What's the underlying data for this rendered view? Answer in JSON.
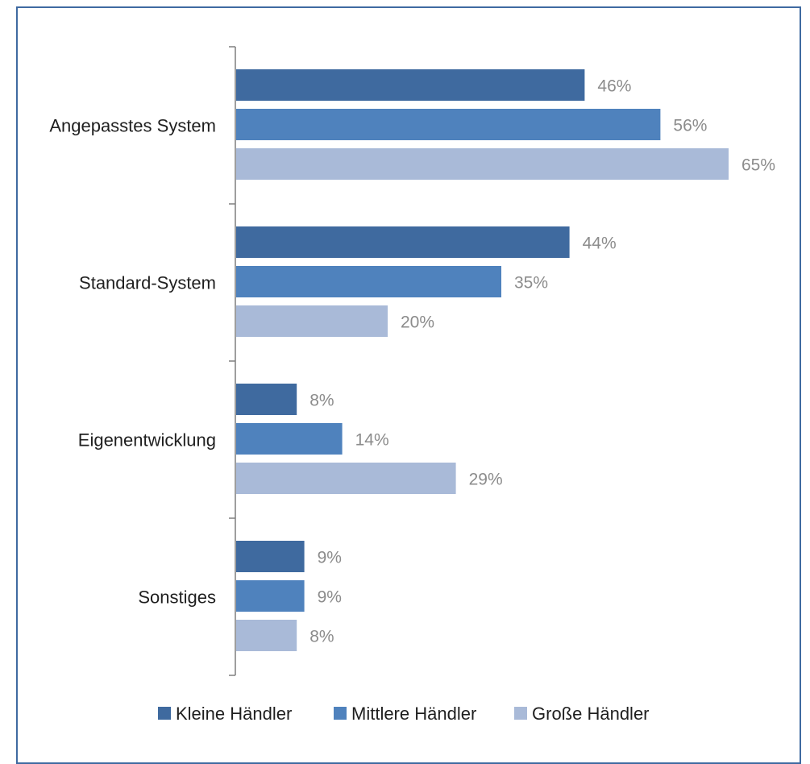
{
  "chart_data": {
    "type": "bar",
    "orientation": "horizontal",
    "categories": [
      "Angepasstes System",
      "Standard-System",
      "Eigenentwicklung",
      "Sonstiges"
    ],
    "series": [
      {
        "name": "Kleine Händler",
        "values": [
          46,
          44,
          8,
          9
        ],
        "color": "#3f6a9f"
      },
      {
        "name": "Mittlere Händler",
        "values": [
          56,
          35,
          14,
          9
        ],
        "color": "#4f82bd"
      },
      {
        "name": "Große Händler",
        "values": [
          65,
          20,
          29,
          8
        ],
        "color": "#a9bad8"
      }
    ],
    "value_suffix": "%",
    "xlim": [
      0,
      70
    ],
    "grid": false,
    "legend_position": "bottom",
    "border_color": "#3f6aa1"
  }
}
